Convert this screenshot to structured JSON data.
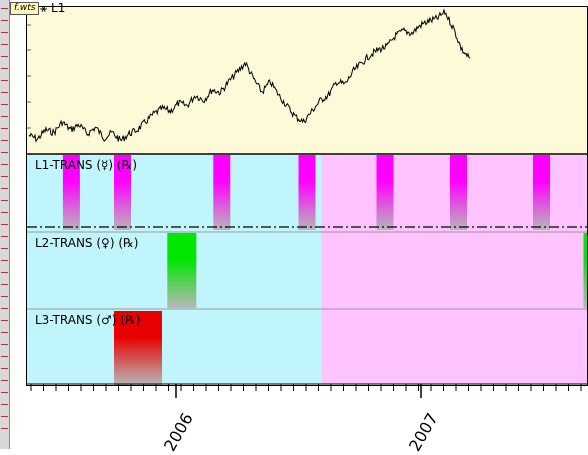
{
  "file_tab": "f.wts",
  "chart_title": "L1",
  "panels": [
    {
      "label": "L1-TRANS (☿) (℞)"
    },
    {
      "label": "L2-TRANS (♀) (℞)"
    },
    {
      "label": "L3-TRANS (♂) (℞)"
    }
  ],
  "x_labels": [
    "2006",
    "2007"
  ],
  "colors": {
    "price_bg": "#fdfbd7",
    "cyan_bg": "#bff5fb",
    "pink_bg": "#ffc3ff",
    "mercury": "#ff00ff",
    "venus": "#00e600",
    "mars": "#e80000"
  },
  "chart_data": {
    "type": "line",
    "title": "L1",
    "series": [
      {
        "values": [
          0.08,
          0.05,
          0.12,
          0.1,
          0.18,
          0.12,
          0.16,
          0.09,
          0.14,
          0.06,
          0.1,
          0.04,
          0.09,
          0.12,
          0.18,
          0.24,
          0.28,
          0.26,
          0.32,
          0.3,
          0.38,
          0.34,
          0.42,
          0.4,
          0.48,
          0.55,
          0.62,
          0.5,
          0.4,
          0.48,
          0.38,
          0.3,
          0.22,
          0.18,
          0.26,
          0.34,
          0.38,
          0.48,
          0.46,
          0.56,
          0.62,
          0.68,
          0.72,
          0.74,
          0.82,
          0.86,
          0.84,
          0.9,
          0.93,
          0.95,
          1.0,
          0.88,
          0.72,
          0.65
        ]
      }
    ],
    "xlabels": [
      "2006",
      "2007"
    ],
    "bands": [
      {
        "panel": 0,
        "color": "mercury",
        "x_frac": [
          0.064,
          0.155,
          0.332,
          0.484,
          0.623,
          0.754,
          0.902
        ]
      },
      {
        "panel": 1,
        "color": "venus",
        "x_frac": [
          0.25,
          0.992
        ]
      },
      {
        "panel": 2,
        "color": "mars",
        "x_frac": [
          0.155
        ]
      }
    ],
    "regions": {
      "cyan_until_frac": 0.525
    }
  }
}
